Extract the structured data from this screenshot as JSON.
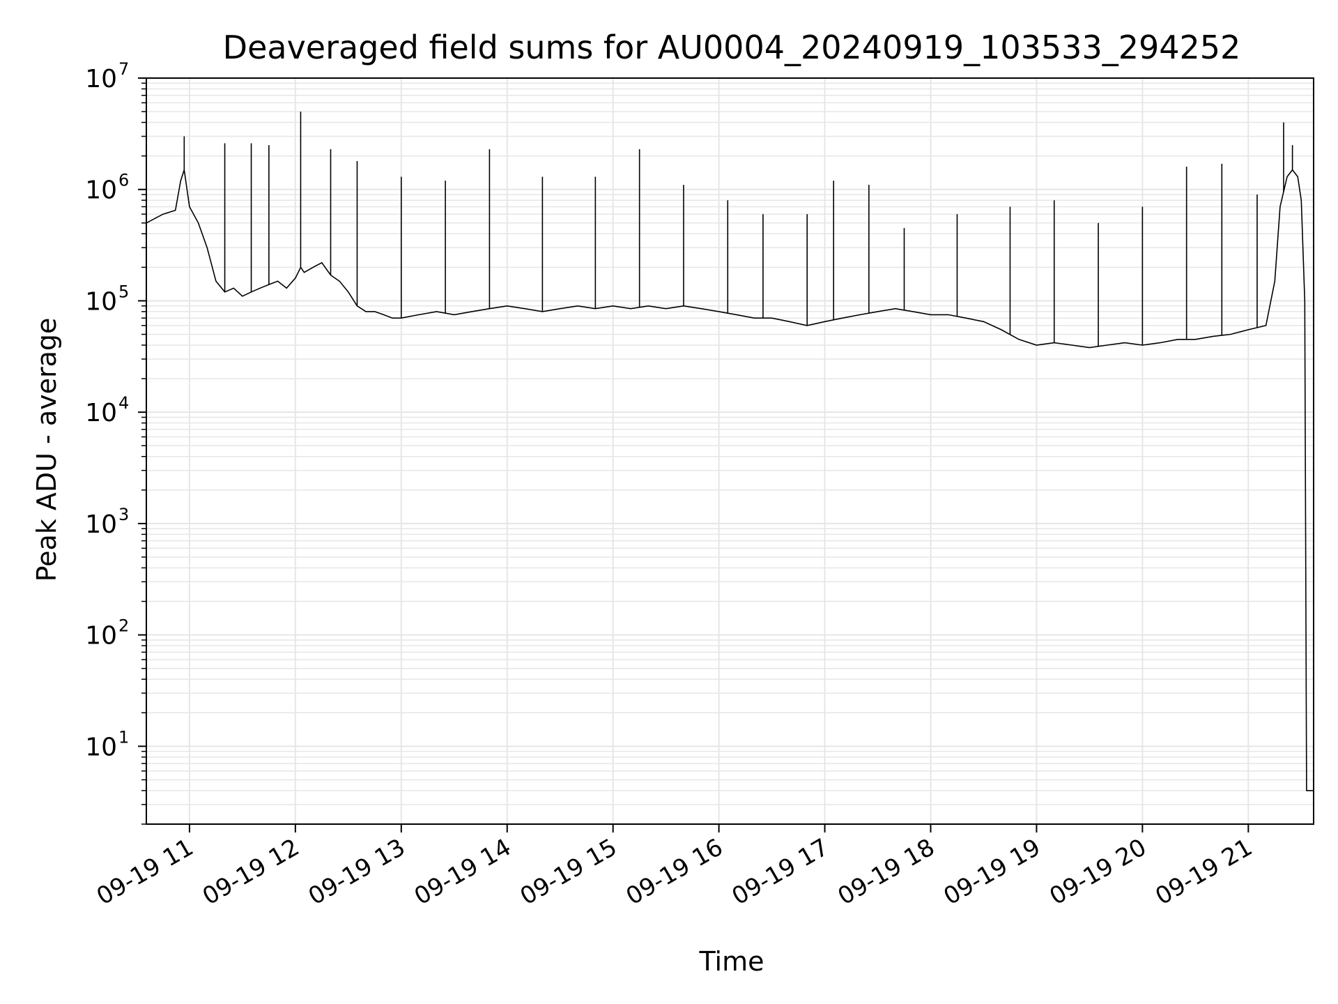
{
  "chart_data": {
    "type": "line",
    "title": "Deaveraged field sums for AU0004_20240919_103533_294252",
    "xlabel": "Time",
    "ylabel": "Peak ADU - average",
    "yscale": "log",
    "ylim": [
      2,
      10000000
    ],
    "xlim": [
      "2024-09-19T10:35:33",
      "2024-09-19T21:37:00"
    ],
    "grid": true,
    "line_color": "#000000",
    "grid_color": "#e6e6e6",
    "x_ticks": [
      {
        "value": "2024-09-19T11:00:00",
        "label": "09-19 11"
      },
      {
        "value": "2024-09-19T12:00:00",
        "label": "09-19 12"
      },
      {
        "value": "2024-09-19T13:00:00",
        "label": "09-19 13"
      },
      {
        "value": "2024-09-19T14:00:00",
        "label": "09-19 14"
      },
      {
        "value": "2024-09-19T15:00:00",
        "label": "09-19 15"
      },
      {
        "value": "2024-09-19T16:00:00",
        "label": "09-19 16"
      },
      {
        "value": "2024-09-19T17:00:00",
        "label": "09-19 17"
      },
      {
        "value": "2024-09-19T18:00:00",
        "label": "09-19 18"
      },
      {
        "value": "2024-09-19T19:00:00",
        "label": "09-19 19"
      },
      {
        "value": "2024-09-19T20:00:00",
        "label": "09-19 20"
      },
      {
        "value": "2024-09-19T21:00:00",
        "label": "09-19 21"
      }
    ],
    "y_ticks": [
      {
        "value": 10,
        "base": "10",
        "exp": "1"
      },
      {
        "value": 100,
        "base": "10",
        "exp": "2"
      },
      {
        "value": 1000,
        "base": "10",
        "exp": "3"
      },
      {
        "value": 10000,
        "base": "10",
        "exp": "4"
      },
      {
        "value": 100000,
        "base": "10",
        "exp": "5"
      },
      {
        "value": 1000000,
        "base": "10",
        "exp": "6"
      },
      {
        "value": 10000000,
        "base": "10",
        "exp": "7"
      }
    ],
    "series": [
      {
        "x": [
          "2024-09-19T10:35:33",
          "2024-09-19T10:45:00",
          "2024-09-19T10:52:00",
          "2024-09-19T10:55:00",
          "2024-09-19T10:57:00",
          "2024-09-19T11:00:00",
          "2024-09-19T11:05:00",
          "2024-09-19T11:10:00",
          "2024-09-19T11:15:00",
          "2024-09-19T11:20:00",
          "2024-09-19T11:25:00",
          "2024-09-19T11:30:00",
          "2024-09-19T11:35:00",
          "2024-09-19T11:40:00",
          "2024-09-19T11:45:00",
          "2024-09-19T11:50:00",
          "2024-09-19T11:55:00",
          "2024-09-19T12:00:00",
          "2024-09-19T12:03:00",
          "2024-09-19T12:05:00",
          "2024-09-19T12:10:00",
          "2024-09-19T12:15:00",
          "2024-09-19T12:20:00",
          "2024-09-19T12:25:00",
          "2024-09-19T12:30:00",
          "2024-09-19T12:35:00",
          "2024-09-19T12:40:00",
          "2024-09-19T12:45:00",
          "2024-09-19T12:50:00",
          "2024-09-19T12:55:00",
          "2024-09-19T13:00:00",
          "2024-09-19T13:10:00",
          "2024-09-19T13:20:00",
          "2024-09-19T13:30:00",
          "2024-09-19T13:40:00",
          "2024-09-19T13:50:00",
          "2024-09-19T14:00:00",
          "2024-09-19T14:10:00",
          "2024-09-19T14:20:00",
          "2024-09-19T14:30:00",
          "2024-09-19T14:40:00",
          "2024-09-19T14:50:00",
          "2024-09-19T15:00:00",
          "2024-09-19T15:10:00",
          "2024-09-19T15:20:00",
          "2024-09-19T15:30:00",
          "2024-09-19T15:40:00",
          "2024-09-19T15:50:00",
          "2024-09-19T16:00:00",
          "2024-09-19T16:10:00",
          "2024-09-19T16:20:00",
          "2024-09-19T16:30:00",
          "2024-09-19T16:40:00",
          "2024-09-19T16:50:00",
          "2024-09-19T17:00:00",
          "2024-09-19T17:10:00",
          "2024-09-19T17:20:00",
          "2024-09-19T17:30:00",
          "2024-09-19T17:40:00",
          "2024-09-19T17:50:00",
          "2024-09-19T18:00:00",
          "2024-09-19T18:10:00",
          "2024-09-19T18:20:00",
          "2024-09-19T18:30:00",
          "2024-09-19T18:40:00",
          "2024-09-19T18:50:00",
          "2024-09-19T19:00:00",
          "2024-09-19T19:10:00",
          "2024-09-19T19:20:00",
          "2024-09-19T19:30:00",
          "2024-09-19T19:40:00",
          "2024-09-19T19:50:00",
          "2024-09-19T20:00:00",
          "2024-09-19T20:10:00",
          "2024-09-19T20:20:00",
          "2024-09-19T20:30:00",
          "2024-09-19T20:40:00",
          "2024-09-19T20:50:00",
          "2024-09-19T21:00:00",
          "2024-09-19T21:10:00",
          "2024-09-19T21:15:00",
          "2024-09-19T21:18:00",
          "2024-09-19T21:22:00",
          "2024-09-19T21:25:00",
          "2024-09-19T21:28:00",
          "2024-09-19T21:30:00",
          "2024-09-19T21:32:00",
          "2024-09-19T21:33:00",
          "2024-09-19T21:37:00"
        ],
        "y": [
          500000,
          600000,
          650000,
          1200000,
          1500000,
          700000,
          500000,
          300000,
          150000,
          120000,
          130000,
          110000,
          120000,
          130000,
          140000,
          150000,
          130000,
          160000,
          200000,
          180000,
          200000,
          220000,
          170000,
          150000,
          120000,
          90000,
          80000,
          80000,
          75000,
          70000,
          70000,
          75000,
          80000,
          75000,
          80000,
          85000,
          90000,
          85000,
          80000,
          85000,
          90000,
          85000,
          90000,
          85000,
          90000,
          85000,
          90000,
          85000,
          80000,
          75000,
          70000,
          70000,
          65000,
          60000,
          65000,
          70000,
          75000,
          80000,
          85000,
          80000,
          75000,
          75000,
          70000,
          65000,
          55000,
          45000,
          40000,
          42000,
          40000,
          38000,
          40000,
          42000,
          40000,
          42000,
          45000,
          45000,
          48000,
          50000,
          55000,
          60000,
          150000,
          700000,
          1300000,
          1500000,
          1300000,
          800000,
          100000,
          4,
          4
        ]
      }
    ],
    "spikes": [
      {
        "x": "2024-09-19T10:57:00",
        "y": 3000000
      },
      {
        "x": "2024-09-19T11:20:00",
        "y": 2600000
      },
      {
        "x": "2024-09-19T11:35:00",
        "y": 2600000
      },
      {
        "x": "2024-09-19T11:45:00",
        "y": 2500000
      },
      {
        "x": "2024-09-19T12:03:00",
        "y": 5000000
      },
      {
        "x": "2024-09-19T12:20:00",
        "y": 2300000
      },
      {
        "x": "2024-09-19T12:35:00",
        "y": 1800000
      },
      {
        "x": "2024-09-19T13:00:00",
        "y": 1300000
      },
      {
        "x": "2024-09-19T13:25:00",
        "y": 1200000
      },
      {
        "x": "2024-09-19T13:50:00",
        "y": 2300000
      },
      {
        "x": "2024-09-19T14:20:00",
        "y": 1300000
      },
      {
        "x": "2024-09-19T14:50:00",
        "y": 1300000
      },
      {
        "x": "2024-09-19T15:15:00",
        "y": 2300000
      },
      {
        "x": "2024-09-19T15:40:00",
        "y": 1100000
      },
      {
        "x": "2024-09-19T16:05:00",
        "y": 800000
      },
      {
        "x": "2024-09-19T16:25:00",
        "y": 600000
      },
      {
        "x": "2024-09-19T16:50:00",
        "y": 600000
      },
      {
        "x": "2024-09-19T17:05:00",
        "y": 1200000
      },
      {
        "x": "2024-09-19T17:25:00",
        "y": 1100000
      },
      {
        "x": "2024-09-19T17:45:00",
        "y": 450000
      },
      {
        "x": "2024-09-19T18:15:00",
        "y": 600000
      },
      {
        "x": "2024-09-19T18:45:00",
        "y": 700000
      },
      {
        "x": "2024-09-19T19:10:00",
        "y": 800000
      },
      {
        "x": "2024-09-19T19:35:00",
        "y": 500000
      },
      {
        "x": "2024-09-19T20:00:00",
        "y": 700000
      },
      {
        "x": "2024-09-19T20:25:00",
        "y": 1600000
      },
      {
        "x": "2024-09-19T20:45:00",
        "y": 1700000
      },
      {
        "x": "2024-09-19T21:05:00",
        "y": 900000
      },
      {
        "x": "2024-09-19T21:20:00",
        "y": 4000000
      },
      {
        "x": "2024-09-19T21:25:00",
        "y": 2500000
      }
    ]
  }
}
